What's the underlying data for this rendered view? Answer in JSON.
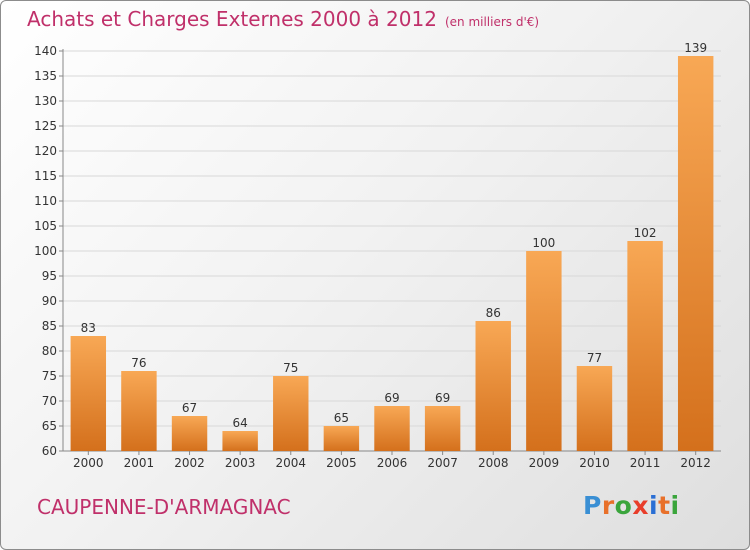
{
  "title": "Achats et Charges Externes 2000 à 2012",
  "unit_label": "(en milliers d'€)",
  "commune": "CAUPENNE-D'ARMAGNAC",
  "logo": {
    "text": "Proxiti",
    "letter_colors": [
      "#3a8fd4",
      "#e8702a",
      "#3aa53c",
      "#e83d2a",
      "#2a6fd4",
      "#e8702a",
      "#3aa53c"
    ]
  },
  "colors": {
    "bar_light": "#f8a855",
    "bar_dark": "#d4701c",
    "title": "#c0306a",
    "grid": "#d8d8d8",
    "axis": "#888888"
  },
  "chart_data": {
    "type": "bar",
    "categories": [
      "2000",
      "2001",
      "2002",
      "2003",
      "2004",
      "2005",
      "2006",
      "2007",
      "2008",
      "2009",
      "2010",
      "2011",
      "2012"
    ],
    "values": [
      83,
      76,
      67,
      64,
      75,
      65,
      69,
      69,
      86,
      100,
      77,
      102,
      139
    ],
    "ylim": [
      60,
      140
    ],
    "yticks": [
      60,
      65,
      70,
      75,
      80,
      85,
      90,
      95,
      100,
      105,
      110,
      115,
      120,
      125,
      130,
      135,
      140
    ],
    "grid": true,
    "title": "Achats et Charges Externes 2000 à 2012",
    "xlabel": "",
    "ylabel": ""
  }
}
